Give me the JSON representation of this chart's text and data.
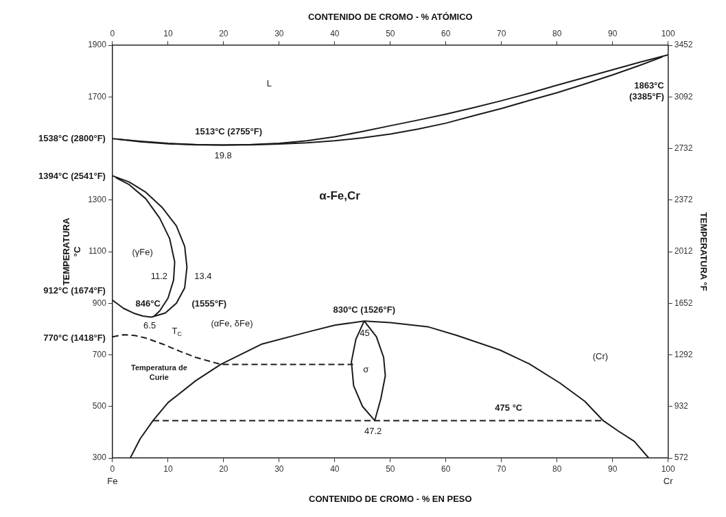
{
  "chart_data": {
    "type": "line",
    "xlabel": "CONTENIDO DE CROMO - % EN PESO",
    "x2label": "CONTENIDO DE CROMO - % ATÓMICO",
    "ylabel": "TEMPERATURA\n°C",
    "y2label": "TEMPERATURA °F",
    "xlim": [
      0,
      100
    ],
    "xticks": [
      0,
      10,
      20,
      30,
      40,
      50,
      60,
      70,
      80,
      90,
      100
    ],
    "x2lim": [
      0,
      100
    ],
    "x2ticks": [
      0,
      10,
      20,
      30,
      40,
      50,
      60,
      70,
      80,
      90,
      100
    ],
    "ylim": [
      300,
      1900
    ],
    "yticks": [
      300,
      500,
      700,
      900,
      1100,
      1300,
      {
        "value": 1500,
        "label": null
      },
      1700,
      1900
    ],
    "y2lim": [
      572,
      3452
    ],
    "y2ticks": [
      572,
      932,
      1292,
      1652,
      2012,
      2372,
      2732,
      3092,
      3452
    ],
    "grid": false,
    "marker": "none",
    "series": [
      {
        "color": "#1a1a1a",
        "x": [
          0,
          5,
          10,
          15,
          19.8,
          25,
          30,
          35,
          40,
          45,
          50,
          55,
          60,
          65,
          70,
          75,
          80,
          85,
          90,
          95,
          100
        ],
        "values": [
          1538,
          1528,
          1520,
          1515,
          1513,
          1515,
          1520,
          1530,
          1545,
          1566,
          1588,
          1610,
          1633,
          1658,
          1685,
          1714,
          1745,
          1775,
          1805,
          1835,
          1863
        ]
      },
      {
        "color": "#1a1a1a",
        "x": [
          1,
          5,
          10,
          15,
          19.8,
          25,
          30,
          35,
          40,
          45,
          50,
          55,
          60,
          65,
          70,
          75,
          80,
          85,
          90,
          95,
          99
        ],
        "values": [
          1536,
          1526,
          1518,
          1514,
          1513,
          1514,
          1517,
          1522,
          1530,
          1541,
          1556,
          1575,
          1598,
          1627,
          1655,
          1686,
          1716,
          1750,
          1785,
          1823,
          1855
        ]
      },
      {
        "color": "#1a1a1a",
        "x": [
          0,
          2,
          4,
          5.5,
          7,
          9.5,
          11.5,
          13,
          13.4,
          13,
          11.5,
          9,
          6,
          3,
          0
        ],
        "values": [
          912,
          880,
          860,
          850,
          846,
          862,
          900,
          960,
          1040,
          1120,
          1200,
          1270,
          1330,
          1370,
          1394
        ]
      },
      {
        "color": "#1a1a1a",
        "x": [
          0.6,
          3,
          6,
          8.5,
          10.3,
          11.2,
          11,
          10,
          8.5,
          7.5
        ],
        "values": [
          1387,
          1360,
          1305,
          1230,
          1150,
          1060,
          990,
          920,
          870,
          850
        ]
      },
      {
        "color": "#1a1a1a",
        "line_style": "dashed",
        "x": [
          0,
          2,
          4,
          6,
          9,
          12,
          15,
          19.5,
          43.3
        ],
        "values": [
          770,
          778,
          775,
          765,
          742,
          715,
          690,
          663,
          663
        ]
      },
      {
        "color": "#1a1a1a",
        "x": [
          3.2,
          5,
          7.3,
          10,
          15,
          19.5,
          26.8,
          35.4,
          40,
          45.3,
          50,
          56.9,
          62,
          69.8,
          75,
          80.5,
          85,
          88.3,
          91,
          93.9,
          96.5
        ],
        "values": [
          300,
          375,
          445,
          515,
          600,
          663,
          741,
          790,
          815,
          831,
          825,
          808,
          775,
          718,
          665,
          591,
          520,
          445,
          405,
          365,
          300
        ]
      },
      {
        "color": "#1a1a1a",
        "x": [
          45.3,
          43.8,
          43,
          43.4,
          45,
          47.2
        ],
        "values": [
          831,
          760,
          673,
          580,
          500,
          445
        ]
      },
      {
        "color": "#1a1a1a",
        "x": [
          45.3,
          47.5,
          48.8,
          49.1,
          48.3,
          47.2
        ],
        "values": [
          831,
          770,
          690,
          619,
          530,
          445
        ]
      },
      {
        "color": "#1a1a1a",
        "line_style": "dashed",
        "x": [
          7.3,
          88.3
        ],
        "values": [
          445,
          445
        ]
      }
    ],
    "annotations": [
      "1538°C (2800°F)",
      "1394°C (2541°F)",
      "912°C (1674°F)",
      "770°C (1418°F)",
      "L",
      "1513°C (2755°F)",
      "19.8",
      "1863°C\n(3385°F)",
      "α-Fe,Cr",
      "(γFe)",
      "11.2",
      "13.4",
      "846°C",
      "(1555°F)",
      "6.5",
      "(αFe, δFe)",
      "T$_{C}$",
      "Temperatura de\nCurie",
      "830°C (1526°F)",
      "45",
      "σ",
      "47.2",
      "(Cr)",
      "475 °C",
      "Fe",
      "Cr"
    ]
  }
}
